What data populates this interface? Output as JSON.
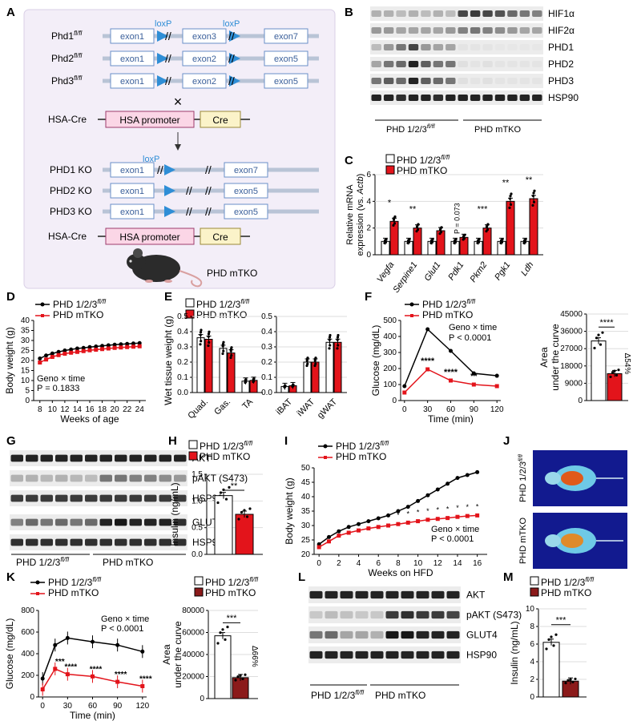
{
  "panel_letters": [
    "A",
    "B",
    "C",
    "D",
    "E",
    "F",
    "G",
    "H",
    "I",
    "J",
    "K",
    "L",
    "M"
  ],
  "genotype_ctrl": "PHD 1/2/3",
  "genotype_ctrl_sup": "fl/fl",
  "genotype_ko": "PHD mTKO",
  "colors": {
    "ctrl": "#000000",
    "ko": "#e3141b",
    "ko_dark": "#8b1a1a",
    "cre_box": "#fbd6e6",
    "cre_yellow": "#fbf3c9",
    "exon_box": "#ffffff",
    "panelA_bg": "#f3eef8",
    "loxp": "#2f8ed6"
  },
  "panelA": {
    "alleles": [
      {
        "name": "Phd1",
        "sup": "fl/fl",
        "exons": [
          "exon1",
          "exon3",
          "exon7"
        ],
        "loxp_labels": [
          "loxP",
          "loxP"
        ]
      },
      {
        "name": "Phd2",
        "sup": "fl/fl",
        "exons": [
          "exon1",
          "exon2",
          "exon5"
        ]
      },
      {
        "name": "Phd3",
        "sup": "fl/fl",
        "exons": [
          "exon1",
          "exon2",
          "exon5"
        ]
      }
    ],
    "cross": "×",
    "hsa_cre": "HSA-Cre",
    "hsa_promoter": "HSA promoter",
    "cre": "Cre",
    "ko": [
      {
        "name": "PHD1 KO",
        "exons": [
          "exon1",
          "exon7"
        ],
        "loxp": "loxP"
      },
      {
        "name": "PHD2 KO",
        "exons": [
          "exon1",
          "exon5"
        ]
      },
      {
        "name": "PHD3 KO",
        "exons": [
          "exon1",
          "exon5"
        ]
      }
    ],
    "mouse_label": "PHD mTKO"
  },
  "panelB": {
    "bands": [
      "HIF1α",
      "HIF2α",
      "PHD1",
      "PHD2",
      "PHD3",
      "HSP90"
    ],
    "groups": [
      "PHD 1/2/3",
      "PHD mTKO"
    ]
  },
  "panelG": {
    "bands": [
      "AKT",
      "pAKT (S473)",
      "HSP90",
      "GLUT4",
      "HSP90"
    ],
    "groups": [
      "PHD 1/2/3",
      "PHD mTKO"
    ]
  },
  "panelL": {
    "bands": [
      "AKT",
      "pAKT (S473)",
      "GLUT4",
      "HSP90"
    ],
    "groups": [
      "PHD 1/2/3",
      "PHD mTKO"
    ]
  },
  "panelJ": {
    "labels": [
      "PHD 1/2/3",
      "PHD mTKO"
    ]
  },
  "chart_data": [
    {
      "panel": "C",
      "type": "bar",
      "ylabel": "Relative mRNA expression (vs. Actb)",
      "ylim": [
        0,
        6
      ],
      "yticks": [
        0,
        2,
        4,
        6
      ],
      "categories": [
        "Vegfa",
        "Serpine1",
        "Glut1",
        "Pdk1",
        "Pkm2",
        "Pgk1",
        "Ldh"
      ],
      "series": [
        {
          "name": "PHD 1/2/3 fl/fl",
          "values": [
            1.0,
            1.0,
            1.0,
            1.0,
            1.0,
            1.0,
            1.0
          ]
        },
        {
          "name": "PHD mTKO",
          "values": [
            2.5,
            2.0,
            1.8,
            1.3,
            2.0,
            4.0,
            4.2
          ]
        }
      ],
      "annotations": [
        "*",
        "**",
        "",
        "P = 0.073",
        "***",
        "**",
        "**"
      ]
    },
    {
      "panel": "D",
      "type": "line",
      "xlabel": "Weeks of age",
      "ylabel": "Body weight (g)",
      "xlim": [
        7,
        25
      ],
      "ylim": [
        0,
        40
      ],
      "xticks": [
        8,
        10,
        12,
        14,
        16,
        18,
        20,
        22,
        24
      ],
      "yticks": [
        0,
        5,
        10,
        15,
        20,
        25,
        30,
        35,
        40
      ],
      "x": [
        8,
        9,
        10,
        11,
        12,
        13,
        14,
        15,
        16,
        17,
        18,
        19,
        20,
        21,
        22,
        23,
        24
      ],
      "series": [
        {
          "name": "PHD 1/2/3 fl/fl",
          "values": [
            21,
            22.5,
            23.5,
            24.3,
            25,
            25.5,
            26,
            26.3,
            26.7,
            27,
            27.3,
            27.6,
            27.9,
            28.1,
            28.3,
            28.5,
            28.7
          ]
        },
        {
          "name": "PHD mTKO",
          "values": [
            19,
            20.5,
            21.8,
            22.7,
            23.4,
            23.9,
            24.3,
            24.7,
            25.1,
            25.4,
            25.7,
            26,
            26.3,
            26.5,
            26.7,
            26.9,
            27.1
          ]
        }
      ],
      "annotation": [
        "Geno × time",
        "P = 0.1833"
      ]
    },
    {
      "panel": "E",
      "type": "bar",
      "ylabel": "Wet tissue weight (g)",
      "groups": [
        {
          "categories": [
            "Quad.",
            "Gas.",
            "TA"
          ],
          "ylim": [
            0,
            0.5
          ],
          "yticks": [
            0,
            0.1,
            0.2,
            0.3,
            0.4,
            0.5
          ],
          "ctrl": [
            0.36,
            0.29,
            0.075
          ],
          "ko": [
            0.35,
            0.26,
            0.08
          ]
        },
        {
          "categories": [
            "iBAT",
            "iWAT",
            "gWAT"
          ],
          "ylim": [
            0,
            0.5
          ],
          "yticks": [
            0,
            0.1,
            0.2,
            0.3,
            0.4,
            0.5
          ],
          "ctrl": [
            0.04,
            0.2,
            0.33
          ],
          "ko": [
            0.045,
            0.2,
            0.33
          ]
        }
      ]
    },
    {
      "panel": "F",
      "type": "line",
      "xlabel": "Time (min)",
      "ylabel": "Glucose (mg/dL)",
      "xlim": [
        -5,
        125
      ],
      "ylim": [
        0,
        500
      ],
      "x": [
        0,
        30,
        60,
        90,
        120
      ],
      "xticks": [
        0,
        30,
        60,
        90,
        120
      ],
      "yticks": [
        0,
        100,
        200,
        300,
        400,
        500
      ],
      "series": [
        {
          "name": "PHD 1/2/3 fl/fl",
          "values": [
            90,
            445,
            310,
            170,
            155
          ]
        },
        {
          "name": "PHD mTKO",
          "values": [
            50,
            195,
            125,
            100,
            90
          ]
        }
      ],
      "annotation": [
        "Geno × time",
        "P < 0.0001"
      ],
      "sig": [
        "",
        "****",
        "****",
        "**",
        "*"
      ]
    },
    {
      "panel": "F-AUC",
      "type": "bar",
      "ylabel": "Area under the curve",
      "ylim": [
        0,
        45000
      ],
      "yticks": [
        0,
        9000,
        18000,
        27000,
        36000,
        45000
      ],
      "categories": [
        "PHD 1/2/3 fl/fl",
        "PHD mTKO"
      ],
      "values": [
        31000,
        14000
      ],
      "annotation": [
        "****",
        "Δ54%"
      ]
    },
    {
      "panel": "H",
      "type": "bar",
      "ylabel": "Insulin (ng/mL)",
      "ylim": [
        0,
        1.5
      ],
      "yticks": [
        0,
        0.5,
        1.0,
        1.5
      ],
      "categories": [
        "PHD 1/2/3 fl/fl",
        "PHD mTKO"
      ],
      "values": [
        1.1,
        0.75
      ],
      "annotation": [
        "**"
      ]
    },
    {
      "panel": "I",
      "type": "line",
      "xlabel": "Weeks on HFD",
      "ylabel": "Body weight (g)",
      "xlim": [
        -0.5,
        17
      ],
      "ylim": [
        20,
        50
      ],
      "x": [
        0,
        1,
        2,
        3,
        4,
        5,
        6,
        7,
        8,
        9,
        10,
        11,
        12,
        13,
        14,
        15,
        16
      ],
      "xticks": [
        0,
        2,
        4,
        6,
        8,
        10,
        12,
        14,
        16
      ],
      "yticks": [
        20,
        25,
        30,
        35,
        40,
        45,
        50
      ],
      "series": [
        {
          "name": "PHD 1/2/3 fl/fl",
          "values": [
            23.5,
            26,
            28,
            29.5,
            30.5,
            31.5,
            32.5,
            33.5,
            35,
            36.5,
            38.5,
            40.5,
            42.5,
            44.5,
            46.5,
            47.5,
            48.5
          ]
        },
        {
          "name": "PHD mTKO",
          "values": [
            22.5,
            24.5,
            26.5,
            27.5,
            28.3,
            29,
            29.5,
            30,
            30.5,
            31,
            31.5,
            32,
            32.3,
            32.6,
            33,
            33.3,
            33.5
          ]
        }
      ],
      "annotation": [
        "Geno × time",
        "P < 0.0001"
      ]
    },
    {
      "panel": "K",
      "type": "line",
      "xlabel": "Time (min)",
      "ylabel": "Glucose (mg/dL)",
      "xlim": [
        -5,
        125
      ],
      "ylim": [
        0,
        800
      ],
      "x": [
        0,
        15,
        30,
        60,
        90,
        120
      ],
      "xticks": [
        0,
        30,
        60,
        90,
        120
      ],
      "yticks": [
        0,
        200,
        400,
        600,
        800
      ],
      "series": [
        {
          "name": "PHD 1/2/3 fl/fl",
          "values": [
            170,
            480,
            545,
            510,
            480,
            420
          ]
        },
        {
          "name": "PHD mTKO",
          "values": [
            70,
            260,
            210,
            190,
            140,
            100
          ]
        }
      ],
      "annotation": [
        "Geno × time",
        "P < 0.0001"
      ],
      "sig": [
        "",
        "***",
        "****",
        "****",
        "****",
        "****"
      ]
    },
    {
      "panel": "K-AUC",
      "type": "bar",
      "ylabel": "Area under the curve",
      "ylim": [
        0,
        80000
      ],
      "yticks": [
        0,
        20000,
        40000,
        60000,
        80000
      ],
      "categories": [
        "PHD 1/2/3 fl/fl",
        "PHD mTKO"
      ],
      "values": [
        57000,
        19000
      ],
      "annotation": [
        "***",
        "Δ66%"
      ]
    },
    {
      "panel": "M",
      "type": "bar",
      "ylabel": "Insulin (ng/mL)",
      "ylim": [
        0,
        10
      ],
      "yticks": [
        0,
        2,
        4,
        6,
        8,
        10
      ],
      "categories": [
        "PHD 1/2/3 fl/fl",
        "PHD mTKO"
      ],
      "values": [
        6.2,
        1.8
      ],
      "annotation": [
        "***"
      ]
    }
  ]
}
